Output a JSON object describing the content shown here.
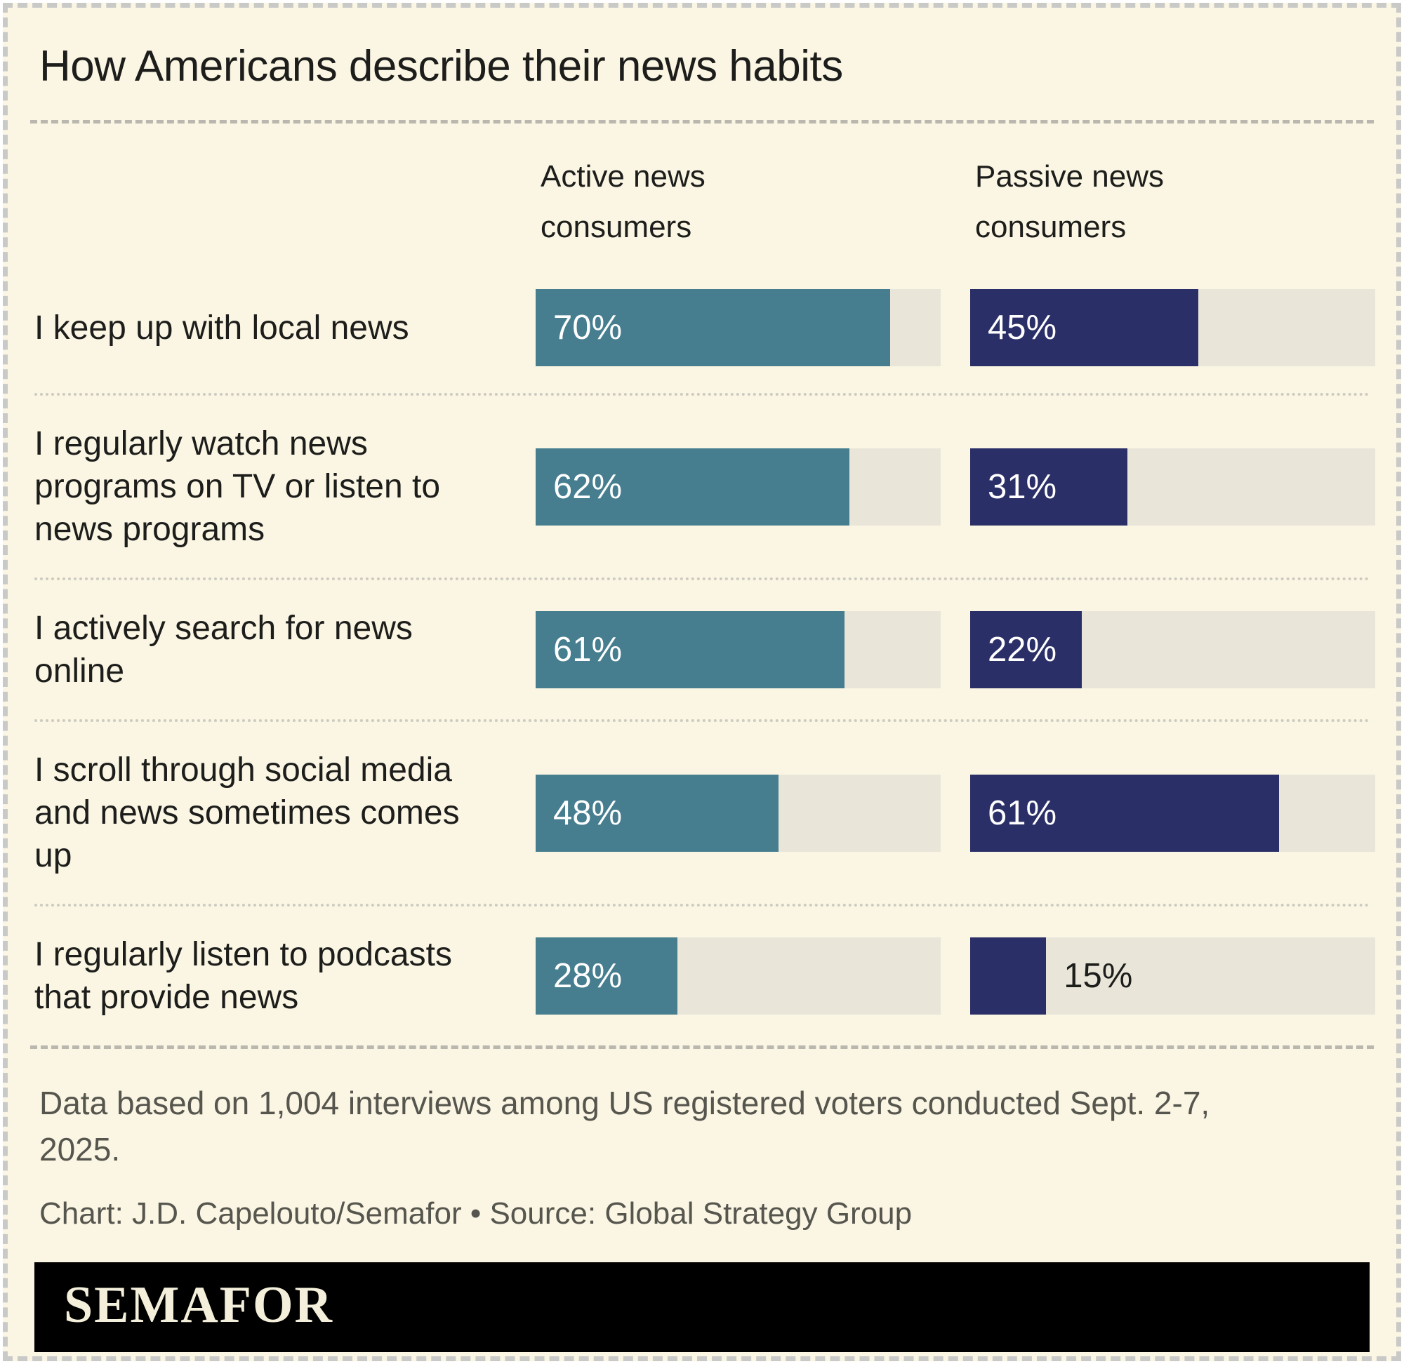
{
  "title": "How Americans describe their news habits",
  "chart_data": {
    "type": "bar",
    "orientation": "horizontal",
    "xmax": 80,
    "grid": false,
    "track_color": "#e9e6d9",
    "background_color": "#faf6e3",
    "categories": [
      "I keep up with local news",
      "I regularly watch news\nprograms on TV or listen to\nnews programs",
      "I actively search for news\nonline",
      "I scroll through social media\nand news sometimes comes\nup",
      "I regularly listen to podcasts\nthat provide news"
    ],
    "series": [
      {
        "name": "Active news consumers",
        "header": "Active news\nconsumers",
        "color": "#467e8f",
        "values": [
          70,
          62,
          61,
          48,
          28
        ]
      },
      {
        "name": "Passive news consumers",
        "header": "Passive news\nconsumers",
        "color": "#2b2f67",
        "values": [
          45,
          31,
          22,
          61,
          15
        ]
      }
    ],
    "value_suffix": "%"
  },
  "footer": {
    "note": "Data based on 1,004 interviews among US registered voters conducted Sept. 2-7,\n2025.",
    "credit": "Chart: J.D. Capelouto/Semafor • Source: Global Strategy Group"
  },
  "logo": "SEMAFOR"
}
